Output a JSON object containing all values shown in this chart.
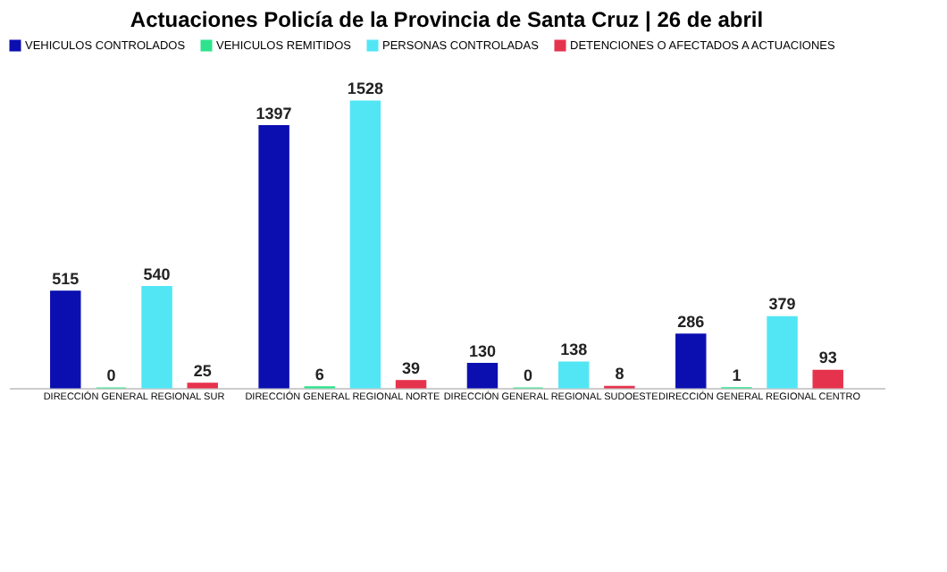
{
  "chart_data": {
    "type": "bar",
    "title": "Actuaciones Policía de la Provincia de Santa Cruz | 26 de abril",
    "categories": [
      "DIRECCIÓN GENERAL REGIONAL SUR",
      "DIRECCIÓN GENERAL REGIONAL NORTE",
      "DIRECCIÓN GENERAL REGIONAL SUDOESTE",
      "DIRECCIÓN GENERAL REGIONAL CENTRO"
    ],
    "series": [
      {
        "name": "VEHICULOS CONTROLADOS",
        "color": "#0b0fb0",
        "values": [
          515,
          1397,
          130,
          286
        ]
      },
      {
        "name": "VEHICULOS REMITIDOS",
        "color": "#2fe38c",
        "values": [
          0,
          6,
          0,
          1
        ]
      },
      {
        "name": "PERSONAS CONTROLADAS",
        "color": "#52e6f5",
        "values": [
          540,
          1528,
          138,
          379
        ]
      },
      {
        "name": "DETENCIONES O AFECTADOS A ACTUACIONES",
        "color": "#e6334d",
        "values": [
          25,
          39,
          8,
          93
        ]
      }
    ],
    "data_labels": true,
    "legend": "top",
    "grid": false
  }
}
